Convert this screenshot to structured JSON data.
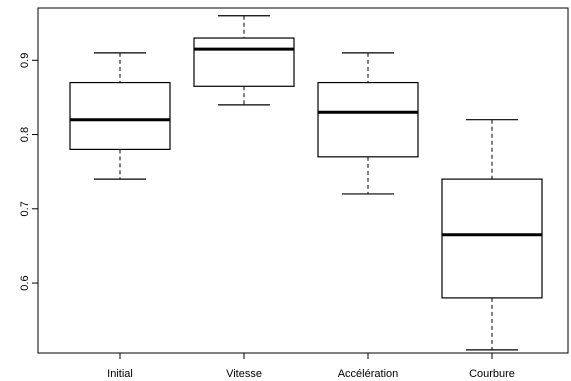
{
  "chart_data": {
    "type": "box",
    "title": "",
    "xlabel": "",
    "ylabel": "",
    "ylim": [
      0.5,
      0.98
    ],
    "yticks": [
      0.6,
      0.7,
      0.8,
      0.9
    ],
    "ytick_labels": [
      "0.6",
      "0.7",
      "0.8",
      "0.9"
    ],
    "grid": false,
    "categories": [
      "Initial",
      "Vitesse",
      "Accélération",
      "Courbure"
    ],
    "boxes": [
      {
        "label": "Initial",
        "min": 0.74,
        "q1": 0.78,
        "median": 0.82,
        "q3": 0.87,
        "max": 0.91
      },
      {
        "label": "Vitesse",
        "min": 0.84,
        "q1": 0.865,
        "median": 0.915,
        "q3": 0.93,
        "max": 0.96
      },
      {
        "label": "Accélération",
        "min": 0.72,
        "q1": 0.77,
        "median": 0.83,
        "q3": 0.87,
        "max": 0.91
      },
      {
        "label": "Courbure",
        "min": 0.51,
        "q1": 0.58,
        "median": 0.665,
        "q3": 0.74,
        "max": 0.82
      }
    ]
  }
}
